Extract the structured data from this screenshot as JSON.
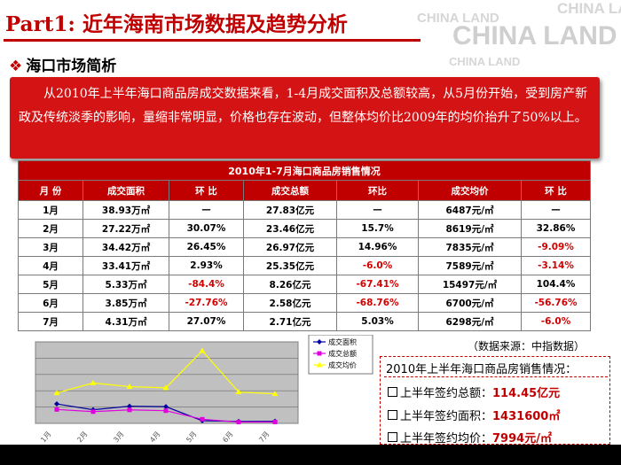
{
  "watermark": {
    "text": "CHINA LAND"
  },
  "slide": {
    "title": "Part1: 近年海南市场数据及趋势分析",
    "subtitle_bullet": "❖",
    "subtitle": "海口市场简析",
    "intro_text": "从2010年上半年海口商品房成交数据来看，1-4月成交面积及总额较高，从5月份开始，受到房产新政及传统淡季的影响，量缩非常明显，价格也存在波动，但整体均价比2009年的均价抬升了50%以上。"
  },
  "table": {
    "caption": "2010年1-7月海口商品房销售情况",
    "headers": [
      "月  份",
      "成交面积",
      "环  比",
      "成交总额",
      "环比",
      "成交均价",
      "环  比"
    ],
    "rows": [
      [
        "1月",
        "38.93万㎡",
        "—",
        "27.83亿元",
        "—",
        "6487元/㎡",
        "—"
      ],
      [
        "2月",
        "27.22万㎡",
        "30.07%",
        "23.46亿元",
        "15.7%",
        "8619元/㎡",
        "32.86%"
      ],
      [
        "3月",
        "34.42万㎡",
        "26.45%",
        "26.97亿元",
        "14.96%",
        "7835元/㎡",
        "-9.09%"
      ],
      [
        "4月",
        "33.41万㎡",
        "2.93%",
        "25.35亿元",
        "-6.0%",
        "7589元/㎡",
        "-3.14%"
      ],
      [
        "5月",
        "5.33万㎡",
        "-84.4%",
        "8.26亿元",
        "-67.41%",
        "15497元/㎡",
        "104.4%"
      ],
      [
        "6月",
        "3.85万㎡",
        "-27.76%",
        "2.58亿元",
        "-68.76%",
        "6700元/㎡",
        "-56.76%"
      ],
      [
        "7月",
        "4.31万㎡",
        "27.07%",
        "2.71亿元",
        "5.03%",
        "6298元/㎡",
        "-6.0%"
      ]
    ]
  },
  "colors": {
    "accent": "#c00000",
    "negative": "#d40000"
  },
  "chart_data": {
    "type": "line",
    "categories": [
      "1月",
      "2月",
      "3月",
      "4月",
      "5月",
      "6月",
      "7月"
    ],
    "series": [
      {
        "name": "成交面积",
        "color": "#0000a0",
        "marker": "diamond",
        "values": [
          38.93,
          27.22,
          34.42,
          33.41,
          5.33,
          3.85,
          4.31
        ]
      },
      {
        "name": "成交总额",
        "color": "#e000e0",
        "marker": "square",
        "values": [
          27.83,
          23.46,
          26.97,
          25.35,
          8.26,
          2.58,
          2.71
        ]
      },
      {
        "name": "成交均价",
        "color": "#ffff00",
        "marker": "triangle",
        "values": [
          6487,
          8619,
          7835,
          7589,
          15497,
          6700,
          6298
        ]
      }
    ],
    "legend_position": "right",
    "plot_background": "#c0c0c0",
    "grid": true
  },
  "source_note": "（数据来源：中指数据）",
  "summary": {
    "title": "2010年上半年海口商品房销售情况：",
    "items": [
      {
        "label": "上半年签约总额：",
        "value": "114.45亿元"
      },
      {
        "label": "上半年签约面积：",
        "value": "1431600㎡"
      },
      {
        "label": "上半年签约均价：",
        "value": "7994元/㎡"
      }
    ]
  }
}
